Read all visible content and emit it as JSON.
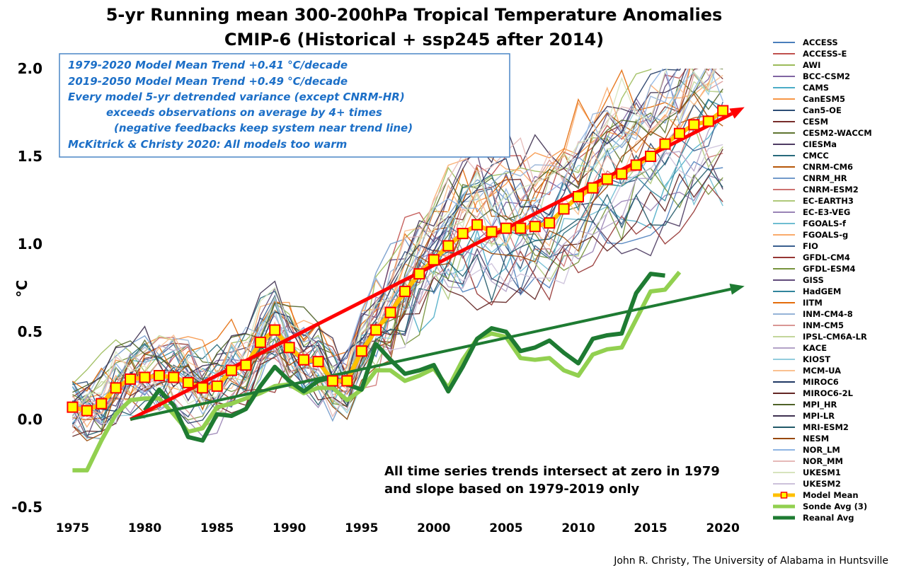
{
  "chart_data": {
    "type": "line",
    "title": "5-yr Running mean 300-200hPa Tropical Temperature Anomalies",
    "subtitle": "CMIP-6 (Historical + ssp245 after 2014)",
    "ylabel": "°C",
    "xlabel": "",
    "xlim": [
      1974,
      2022
    ],
    "ylim": [
      -0.5,
      2.0
    ],
    "x_ticks": [
      "1975",
      "1980",
      "1985",
      "1990",
      "1995",
      "2000",
      "2005",
      "2010",
      "2015",
      "2020"
    ],
    "y_ticks": [
      "-0.5",
      "0.0",
      "0.5",
      "1.0",
      "1.5",
      "2.0"
    ],
    "legend_position": "right",
    "model_names": [
      "ACCESS",
      "ACCESS-E",
      "AWI",
      "BCC-CSM2",
      "CAMS",
      "CanESM5",
      "Can5-OE",
      "CESM",
      "CESM2-WACCM",
      "CIESMa",
      "CMCC",
      "CNRM-CM6",
      "CNRM_HR",
      "CNRM-ESM2",
      "EC-EARTH3",
      "EC-E3-VEG",
      "FGOALS-f",
      "FGOALS-g",
      "FIO",
      "GFDL-CM4",
      "GFDL-ESM4",
      "GISS",
      "HadGEM",
      "IITM",
      "INM-CM4-8",
      "INM-CM5",
      "IPSL-CM6A-LR",
      "KACE",
      "KIOST",
      "MCM-UA",
      "MIROC6",
      "MIROC6-2L",
      "MPI_HR",
      "MPI-LR",
      "MRI-ESM2",
      "NESM",
      "NOR_LM",
      "NOR_MM",
      "UKESM1",
      "UKESM2"
    ],
    "model_colors": [
      "#4a7ebb",
      "#c0504d",
      "#9bbb59",
      "#8064a2",
      "#4bacc6",
      "#f79646",
      "#2c4d75",
      "#772c2a",
      "#5f7530",
      "#4d3b62",
      "#276a7c",
      "#b65708",
      "#729aca",
      "#cd7371",
      "#afc97a",
      "#9983b5",
      "#6fbdd1",
      "#f9ab6b",
      "#3a5f8f",
      "#963634",
      "#77933c",
      "#604a7b",
      "#31859c",
      "#e46c0a",
      "#95b3d7",
      "#d99694",
      "#c3d69b",
      "#b3a2c7",
      "#93cddd",
      "#fac090",
      "#1f3864",
      "#632523",
      "#4f6228",
      "#3f3151",
      "#215968",
      "#984807",
      "#8eb4e3",
      "#e6b9b8",
      "#d7e4bd",
      "#ccc1da"
    ],
    "series": [
      {
        "name": "Model Mean",
        "color": "#ff0000",
        "x": [
          1975,
          1976,
          1977,
          1978,
          1979,
          1980,
          1981,
          1982,
          1983,
          1984,
          1985,
          1986,
          1987,
          1988,
          1989,
          1990,
          1991,
          1992,
          1993,
          1994,
          1995,
          1996,
          1997,
          1998,
          1999,
          2000,
          2001,
          2002,
          2003,
          2004,
          2005,
          2006,
          2007,
          2008,
          2009,
          2010,
          2011,
          2012,
          2013,
          2014,
          2015,
          2016,
          2017,
          2018,
          2019,
          2020
        ],
        "values": [
          0.07,
          0.05,
          0.09,
          0.18,
          0.23,
          0.24,
          0.25,
          0.24,
          0.21,
          0.18,
          0.19,
          0.28,
          0.31,
          0.44,
          0.51,
          0.41,
          0.34,
          0.33,
          0.22,
          0.22,
          0.39,
          0.51,
          0.61,
          0.73,
          0.83,
          0.91,
          0.99,
          1.06,
          1.11,
          1.07,
          1.09,
          1.09,
          1.1,
          1.12,
          1.2,
          1.27,
          1.32,
          1.37,
          1.4,
          1.45,
          1.5,
          1.57,
          1.63,
          1.68,
          1.7,
          1.76
        ]
      },
      {
        "name": "Sonde Avg (3)",
        "color": "#92d050",
        "x": [
          1975,
          1976,
          1977,
          1978,
          1979,
          1980,
          1981,
          1982,
          1983,
          1984,
          1985,
          1986,
          1987,
          1988,
          1989,
          1990,
          1991,
          1992,
          1993,
          1994,
          1995,
          1996,
          1997,
          1998,
          1999,
          2000,
          2001,
          2002,
          2003,
          2004,
          2005,
          2006,
          2007,
          2008,
          2009,
          2010,
          2011,
          2012,
          2013,
          2014,
          2015,
          2016,
          2017
        ],
        "values": [
          -0.29,
          -0.29,
          -0.12,
          0.03,
          0.11,
          0.12,
          0.12,
          0.03,
          -0.07,
          -0.05,
          0.07,
          0.09,
          0.12,
          0.15,
          0.19,
          0.2,
          0.15,
          0.18,
          0.18,
          0.11,
          0.17,
          0.28,
          0.28,
          0.22,
          0.25,
          0.29,
          0.18,
          0.34,
          0.46,
          0.49,
          0.47,
          0.35,
          0.34,
          0.35,
          0.28,
          0.25,
          0.37,
          0.4,
          0.41,
          0.57,
          0.73,
          0.74,
          0.84
        ]
      },
      {
        "name": "Reanal Avg",
        "color": "#1e7b32",
        "x": [
          1980,
          1981,
          1982,
          1983,
          1984,
          1985,
          1986,
          1987,
          1988,
          1989,
          1990,
          1991,
          1992,
          1993,
          1994,
          1995,
          1996,
          1997,
          1998,
          1999,
          2000,
          2001,
          2002,
          2003,
          2004,
          2005,
          2006,
          2007,
          2008,
          2009,
          2010,
          2011,
          2012,
          2013,
          2014,
          2015,
          2016
        ],
        "values": [
          0.05,
          0.17,
          0.08,
          -0.1,
          -0.12,
          0.03,
          0.02,
          0.06,
          0.19,
          0.3,
          0.22,
          0.16,
          0.22,
          0.24,
          0.2,
          0.17,
          0.43,
          0.34,
          0.26,
          0.28,
          0.31,
          0.16,
          0.3,
          0.46,
          0.52,
          0.5,
          0.39,
          0.41,
          0.45,
          0.38,
          0.32,
          0.46,
          0.48,
          0.49,
          0.72,
          0.83,
          0.82
        ]
      }
    ],
    "trend_lines": [
      {
        "name": "model_mean_trend",
        "color": "#ff0000",
        "x": [
          1979,
          2021.5
        ],
        "values": [
          0.0,
          1.78
        ]
      },
      {
        "name": "reanal_trend",
        "color": "#1e7b32",
        "x": [
          1979,
          2021.5
        ],
        "values": [
          0.0,
          0.76
        ]
      }
    ],
    "info_box": [
      "1979-2020 Model Mean Trend +0.41 °C/decade",
      "2019-2050 Model Mean Trend +0.49 °C/decade",
      "Every model 5-yr detrended variance (except CNRM-HR)",
      "exceeds observations on average by 4+ times",
      "(negative feedbacks keep system near trend line)",
      "McKitrick & Christy 2020: All models too warm"
    ],
    "annotation": [
      "All time series trends intersect at zero in 1979",
      "and slope based on 1979-2019 only"
    ],
    "credit": "John R. Christy, The University of Alabama in Huntsville"
  }
}
